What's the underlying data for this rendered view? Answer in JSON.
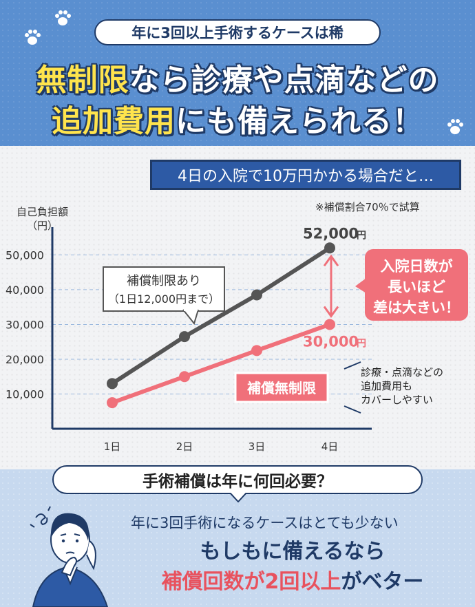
{
  "header": {
    "pill": "年に3回以上手術するケースは稀",
    "line1_highlight": "無制限",
    "line1_rest": "なら診療や点滴などの",
    "line2_highlight": "追加費用",
    "line2_rest": "にも備えられる！"
  },
  "chart_header": {
    "banner": "4日の入院で10万円かかる場合だと…",
    "note": "※補償割合70％で試算",
    "ylabel_line1": "自己負担額",
    "ylabel_line2": "（円）"
  },
  "chart_data": {
    "type": "line",
    "categories": [
      "1日",
      "2日",
      "3日",
      "4日"
    ],
    "y_ticks": [
      "10,000",
      "20,000",
      "30,000",
      "40,000",
      "50,000"
    ],
    "ylim": [
      0,
      58000
    ],
    "grid": true,
    "series": [
      {
        "name": "補償制限あり",
        "sublabel": "（1日12,000円まで）",
        "color": "#555555",
        "values": [
          13000,
          26500,
          38500,
          52000
        ]
      },
      {
        "name": "補償無制限",
        "color": "#f0707a",
        "values": [
          7500,
          15000,
          22500,
          30000
        ]
      }
    ],
    "end_labels": {
      "top": "52,000",
      "bottom": "30,000",
      "unit": "円"
    },
    "callout_right": [
      "入院日数が",
      "長いほど",
      "差は大きい！"
    ],
    "annotation": [
      "診療・点滴などの",
      "追加費用も",
      "カバーしやすい"
    ]
  },
  "bottom": {
    "question": "手術補償は年に何回必要？",
    "line1": "年に3回手術になるケースはとても少ない",
    "line2": "もしもに備えるなら",
    "line3_red1": "補償回数",
    "line3_mid": "が2回",
    "line3_red2": "以上",
    "line3_end": "がベター"
  },
  "colors": {
    "navy": "#1f3a66",
    "header_blue": "#5a8fd0",
    "accent_red": "#e8525e",
    "yellow": "#ffe44d"
  }
}
